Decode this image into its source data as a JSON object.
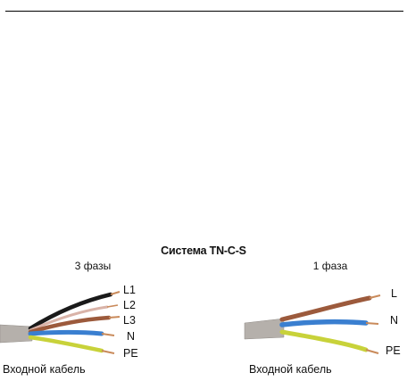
{
  "title": "Система TN-C-S",
  "three_phase": {
    "heading": "3 фазы",
    "cable_label": "Входной кабель",
    "wires": [
      {
        "label": "L1",
        "color": "#1a1a1a"
      },
      {
        "label": "L2",
        "color": "#d9b3a8"
      },
      {
        "label": "L3",
        "color": "#9c5a3c"
      },
      {
        "label": "N",
        "color": "#3a7fd0"
      },
      {
        "label": "PE",
        "color": "#c8d23a"
      }
    ]
  },
  "single_phase": {
    "heading": "1 фаза",
    "cable_label": "Входной кабель",
    "wires": [
      {
        "label": "L",
        "color": "#9c5a3c"
      },
      {
        "label": "N",
        "color": "#3a7fd0"
      },
      {
        "label": "PE",
        "color": "#c8d23a"
      }
    ]
  },
  "colors": {
    "sheath": "#b5b0ab",
    "copper": "#c98a5a"
  }
}
